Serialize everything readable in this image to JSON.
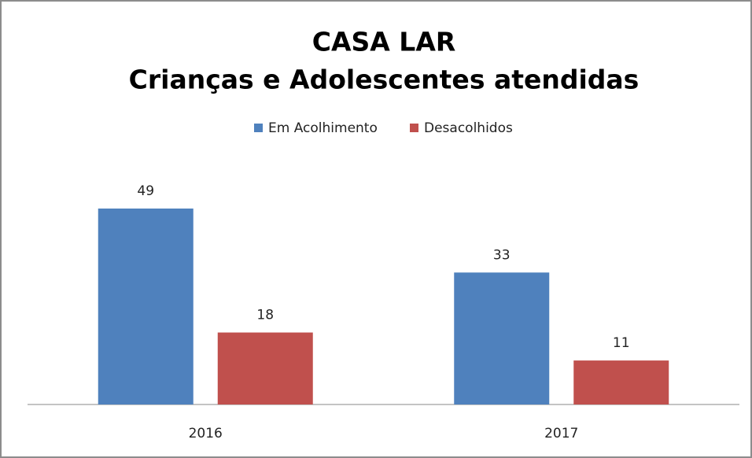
{
  "chart_data": {
    "type": "bar",
    "title": [
      "CASA LAR",
      "Crianças e Adolescentes atendidas"
    ],
    "categories": [
      "2016",
      "2017"
    ],
    "series": [
      {
        "name": "Em Acolhimento",
        "color": "#4f81bd",
        "values": [
          49,
          33
        ]
      },
      {
        "name": "Desacolhidos",
        "color": "#c0504d",
        "values": [
          18,
          11
        ]
      }
    ],
    "legend": "top"
  }
}
